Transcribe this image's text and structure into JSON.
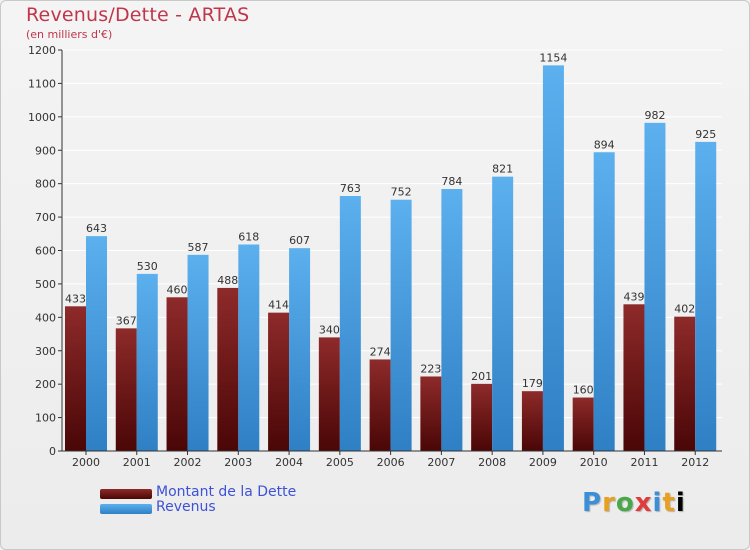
{
  "header": {
    "title": "Revenus/Dette - ARTAS",
    "subtitle": "(en milliers d'€)"
  },
  "legend": {
    "items": [
      {
        "label": "Montant de la Dette",
        "color": "#7a1a1a"
      },
      {
        "label": "Revenus",
        "color": "#3d9be0"
      }
    ]
  },
  "logo": {
    "text": "Proxiti"
  },
  "colors": {
    "dette": "#7a1a1a",
    "revenus": "#3d9be0",
    "title": "#c0364a",
    "legend_text": "#3d52d6"
  },
  "chart_data": {
    "type": "bar",
    "title": "Revenus/Dette - ARTAS",
    "subtitle": "(en milliers d'€)",
    "categories": [
      "2000",
      "2001",
      "2002",
      "2003",
      "2004",
      "2005",
      "2006",
      "2007",
      "2008",
      "2009",
      "2010",
      "2011",
      "2012"
    ],
    "series": [
      {
        "name": "Montant de la Dette",
        "values": [
          433,
          367,
          460,
          488,
          414,
          340,
          274,
          223,
          201,
          179,
          160,
          439,
          402
        ]
      },
      {
        "name": "Revenus",
        "values": [
          643,
          530,
          587,
          618,
          607,
          763,
          752,
          784,
          821,
          1154,
          894,
          982,
          925
        ]
      }
    ],
    "ylim": [
      0,
      1200
    ],
    "yticks": [
      0,
      100,
      200,
      300,
      400,
      500,
      600,
      700,
      800,
      900,
      1000,
      1100,
      1200
    ],
    "grid": true,
    "legend_position": "bottom-left"
  }
}
